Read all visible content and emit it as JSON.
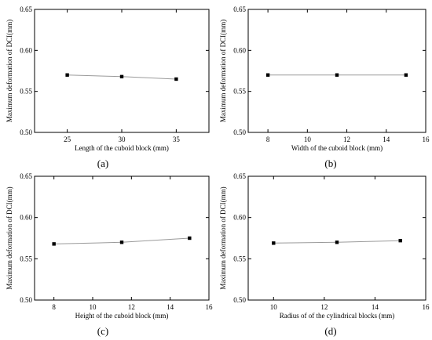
{
  "chart_data": [
    {
      "type": "line",
      "panel_label": "(a)",
      "xlabel": "Length of the cuboid block (mm)",
      "ylabel": "Maximum deformation of DCI(mm)",
      "xlim": [
        22,
        38
      ],
      "ylim": [
        0.5,
        0.65
      ],
      "xticks": [
        25,
        30,
        35
      ],
      "yticks": [
        0.5,
        0.55,
        0.6,
        0.65
      ],
      "x": [
        25,
        30,
        35
      ],
      "y": [
        0.57,
        0.568,
        0.565
      ]
    },
    {
      "type": "line",
      "panel_label": "(b)",
      "xlabel": "Width of the cuboid block (mm)",
      "ylabel": "Maximum deformation of DCI(mm)",
      "xlim": [
        7,
        16
      ],
      "ylim": [
        0.5,
        0.65
      ],
      "xticks": [
        8,
        10,
        12,
        14,
        16
      ],
      "yticks": [
        0.5,
        0.55,
        0.6,
        0.65
      ],
      "x": [
        8,
        11.5,
        15
      ],
      "y": [
        0.57,
        0.57,
        0.57
      ]
    },
    {
      "type": "line",
      "panel_label": "(c)",
      "xlabel": "Height of the cuboid block (mm)",
      "ylabel": "Maximum deformation of DCI(mm)",
      "xlim": [
        7,
        16
      ],
      "ylim": [
        0.5,
        0.65
      ],
      "xticks": [
        8,
        10,
        12,
        14,
        16
      ],
      "yticks": [
        0.5,
        0.55,
        0.6,
        0.65
      ],
      "x": [
        8,
        11.5,
        15
      ],
      "y": [
        0.568,
        0.57,
        0.575
      ]
    },
    {
      "type": "line",
      "panel_label": "(d)",
      "xlabel": "Radius of of the cylindrical blocks (mm)",
      "ylabel": "Maximum deformation of DCI(mm)",
      "xlim": [
        9,
        16
      ],
      "ylim": [
        0.5,
        0.65
      ],
      "xticks": [
        10,
        12,
        14,
        16
      ],
      "yticks": [
        0.5,
        0.55,
        0.6,
        0.65
      ],
      "x": [
        10,
        12.5,
        15
      ],
      "y": [
        0.569,
        0.57,
        0.572
      ]
    }
  ]
}
